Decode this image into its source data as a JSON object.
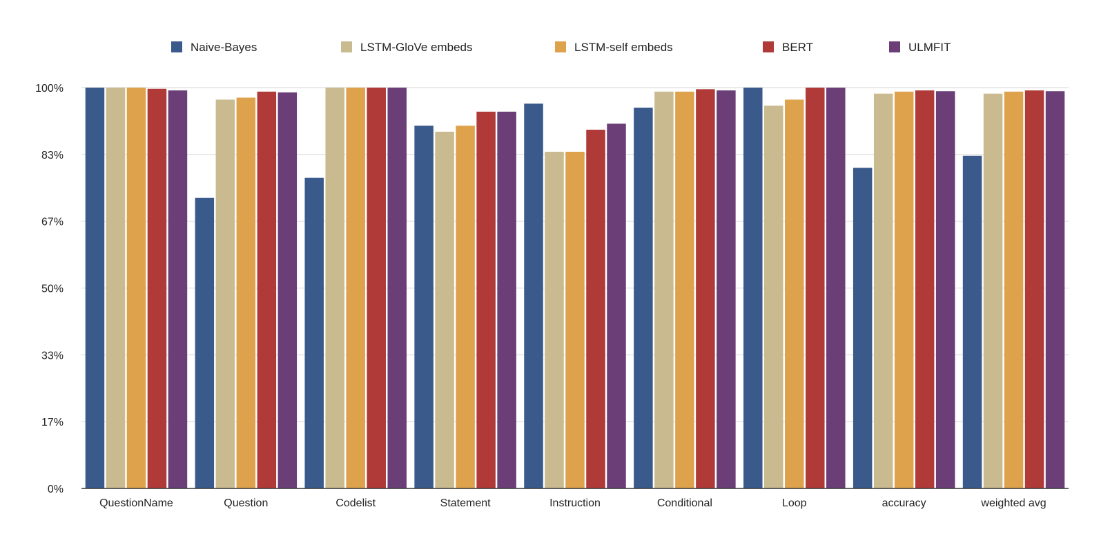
{
  "chart_data": {
    "type": "bar",
    "categories": [
      "QuestionName",
      "Question",
      "Codelist",
      "Statement",
      "Instruction",
      "Conditional",
      "Loop",
      "accuracy",
      "weighted avg"
    ],
    "series": [
      {
        "name": "Naive-Bayes",
        "color": "#3a5a8c",
        "values": [
          100,
          72.5,
          77.5,
          90.5,
          96,
          95,
          100,
          80,
          83
        ]
      },
      {
        "name": "LSTM-GloVe embeds",
        "color": "#c9bb8f",
        "values": [
          100,
          97,
          100,
          89,
          84,
          99,
          95.5,
          98.5,
          98.5
        ]
      },
      {
        "name": "LSTM-self embeds",
        "color": "#dea24c",
        "values": [
          100,
          97.5,
          100,
          90.5,
          84,
          99,
          97,
          99,
          99
        ]
      },
      {
        "name": "BERT",
        "color": "#b03a38",
        "values": [
          99.7,
          99,
          100,
          94,
          89.5,
          99.6,
          100,
          99.3,
          99.3
        ]
      },
      {
        "name": "ULMFIT",
        "color": "#6b3e77",
        "values": [
          99.3,
          98.8,
          100,
          94,
          91,
          99.3,
          100,
          99.1,
          99.1
        ]
      }
    ],
    "yticks": [
      "0%",
      "17%",
      "33%",
      "50%",
      "67%",
      "83%",
      "100%"
    ],
    "ytick_values": [
      0,
      16.67,
      33.33,
      50,
      66.67,
      83.33,
      100
    ],
    "ylim": [
      0,
      100
    ],
    "grid": true,
    "legend_position": "top",
    "title": "",
    "xlabel": "",
    "ylabel": ""
  }
}
